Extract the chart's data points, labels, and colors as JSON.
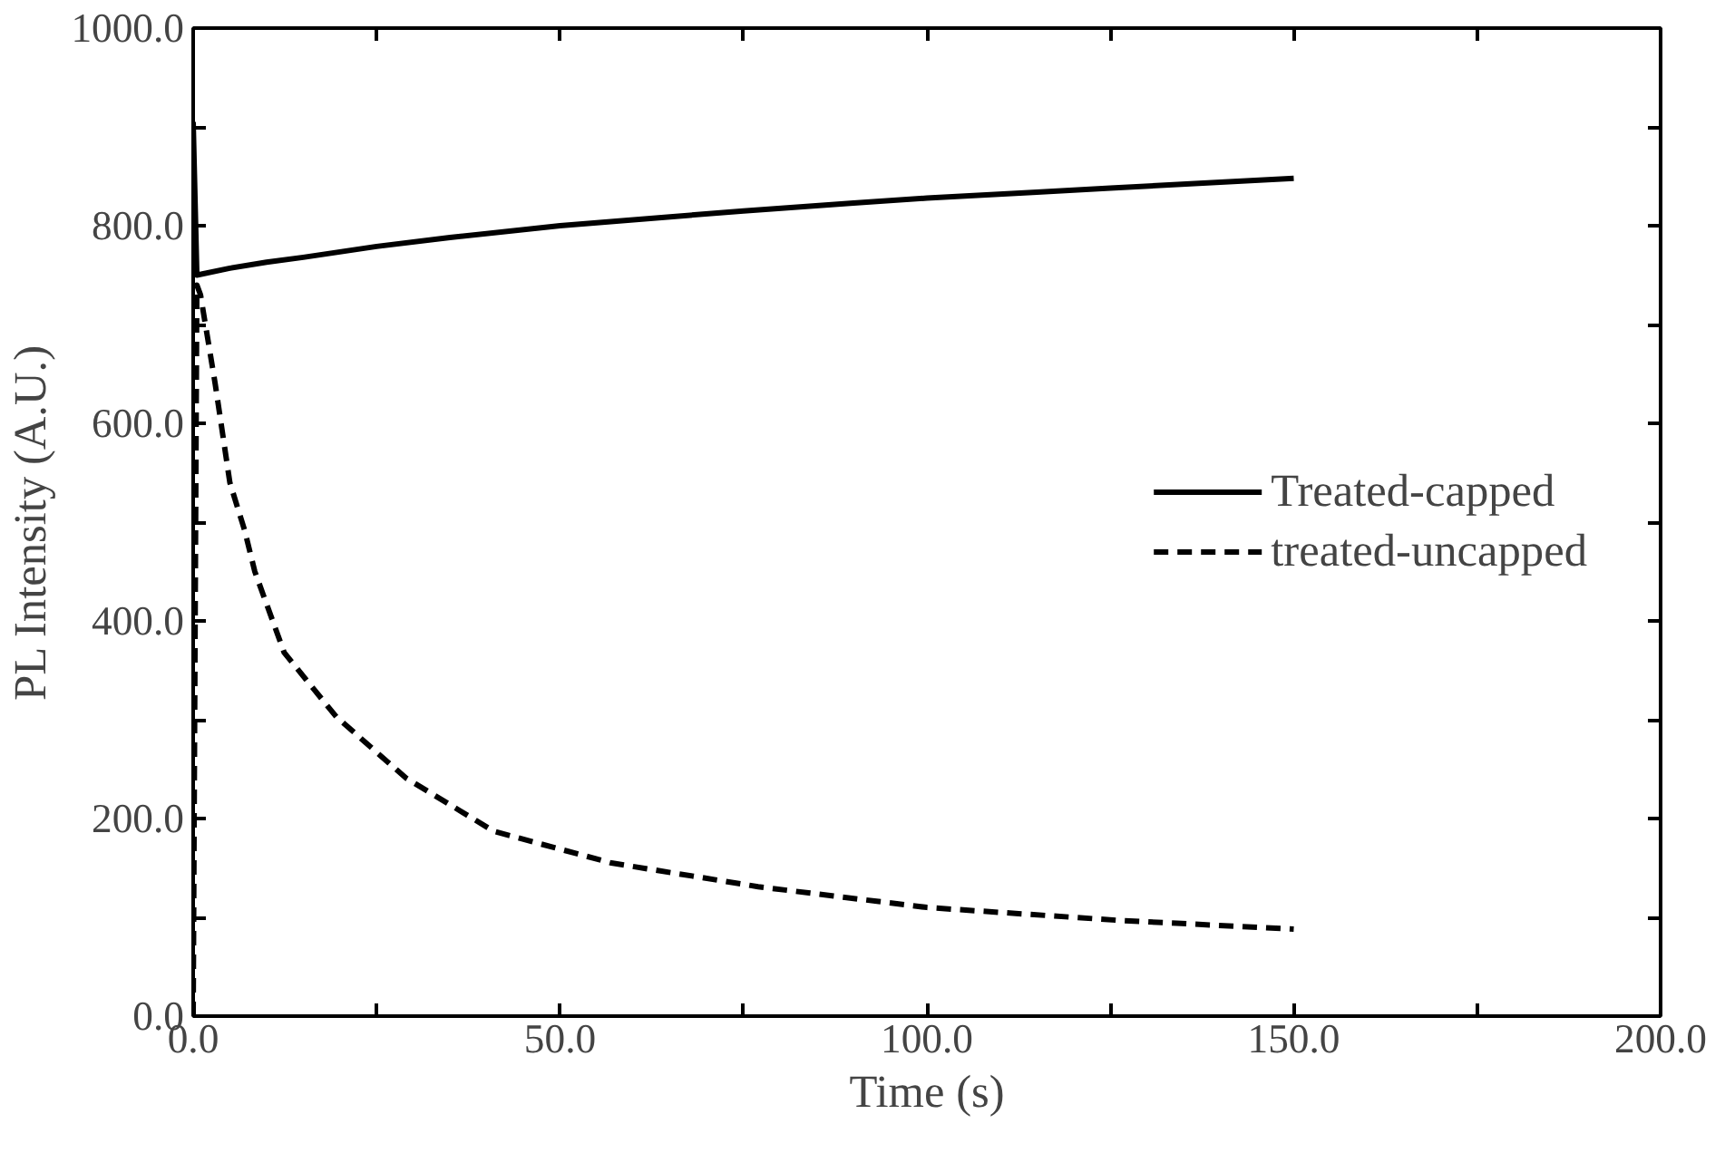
{
  "chart_data": {
    "type": "line",
    "xlabel": "Time (s)",
    "ylabel": "PL Intensity (A.U.)",
    "xlim": [
      0,
      200
    ],
    "ylim": [
      0,
      1000
    ],
    "xticks": [
      {
        "value": 0,
        "label": "0.0"
      },
      {
        "value": 25,
        "label": null
      },
      {
        "value": 50,
        "label": "50.0"
      },
      {
        "value": 75,
        "label": null
      },
      {
        "value": 100,
        "label": "100.0"
      },
      {
        "value": 125,
        "label": null
      },
      {
        "value": 150,
        "label": "150.0"
      },
      {
        "value": 175,
        "label": null
      },
      {
        "value": 200,
        "label": "200.0"
      }
    ],
    "yticks": [
      {
        "value": 0,
        "label": "0.0"
      },
      {
        "value": 100,
        "label": null
      },
      {
        "value": 200,
        "label": "200.0"
      },
      {
        "value": 300,
        "label": null
      },
      {
        "value": 400,
        "label": "400.0"
      },
      {
        "value": 500,
        "label": null
      },
      {
        "value": 600,
        "label": "600.0"
      },
      {
        "value": 700,
        "label": null
      },
      {
        "value": 800,
        "label": "800.0"
      },
      {
        "value": 900,
        "label": null
      },
      {
        "value": 1000,
        "label": "1000.0"
      }
    ],
    "grid": false,
    "legend": "right",
    "series": [
      {
        "name": "Treated-capped",
        "color": "#000000",
        "line_style": "solid",
        "x": [
          0,
          0.5,
          5,
          10,
          15,
          25,
          35,
          50,
          65,
          75,
          90,
          100,
          115,
          125,
          140,
          150
        ],
        "values": [
          905,
          750,
          757,
          763,
          768,
          779,
          788,
          800,
          809,
          815,
          823,
          828,
          834,
          838,
          844,
          848
        ]
      },
      {
        "name": "treated-uncapped",
        "color": "#000000",
        "line_style": "dashed",
        "x": [
          0,
          0.5,
          1,
          3,
          5,
          7,
          8.4,
          12.4,
          19.5,
          29,
          41,
          57,
          77,
          100,
          126,
          150
        ],
        "values": [
          0,
          740,
          730,
          640,
          540,
          492,
          450,
          368,
          303,
          241,
          187,
          155,
          131,
          110,
          97,
          88
        ]
      }
    ]
  }
}
